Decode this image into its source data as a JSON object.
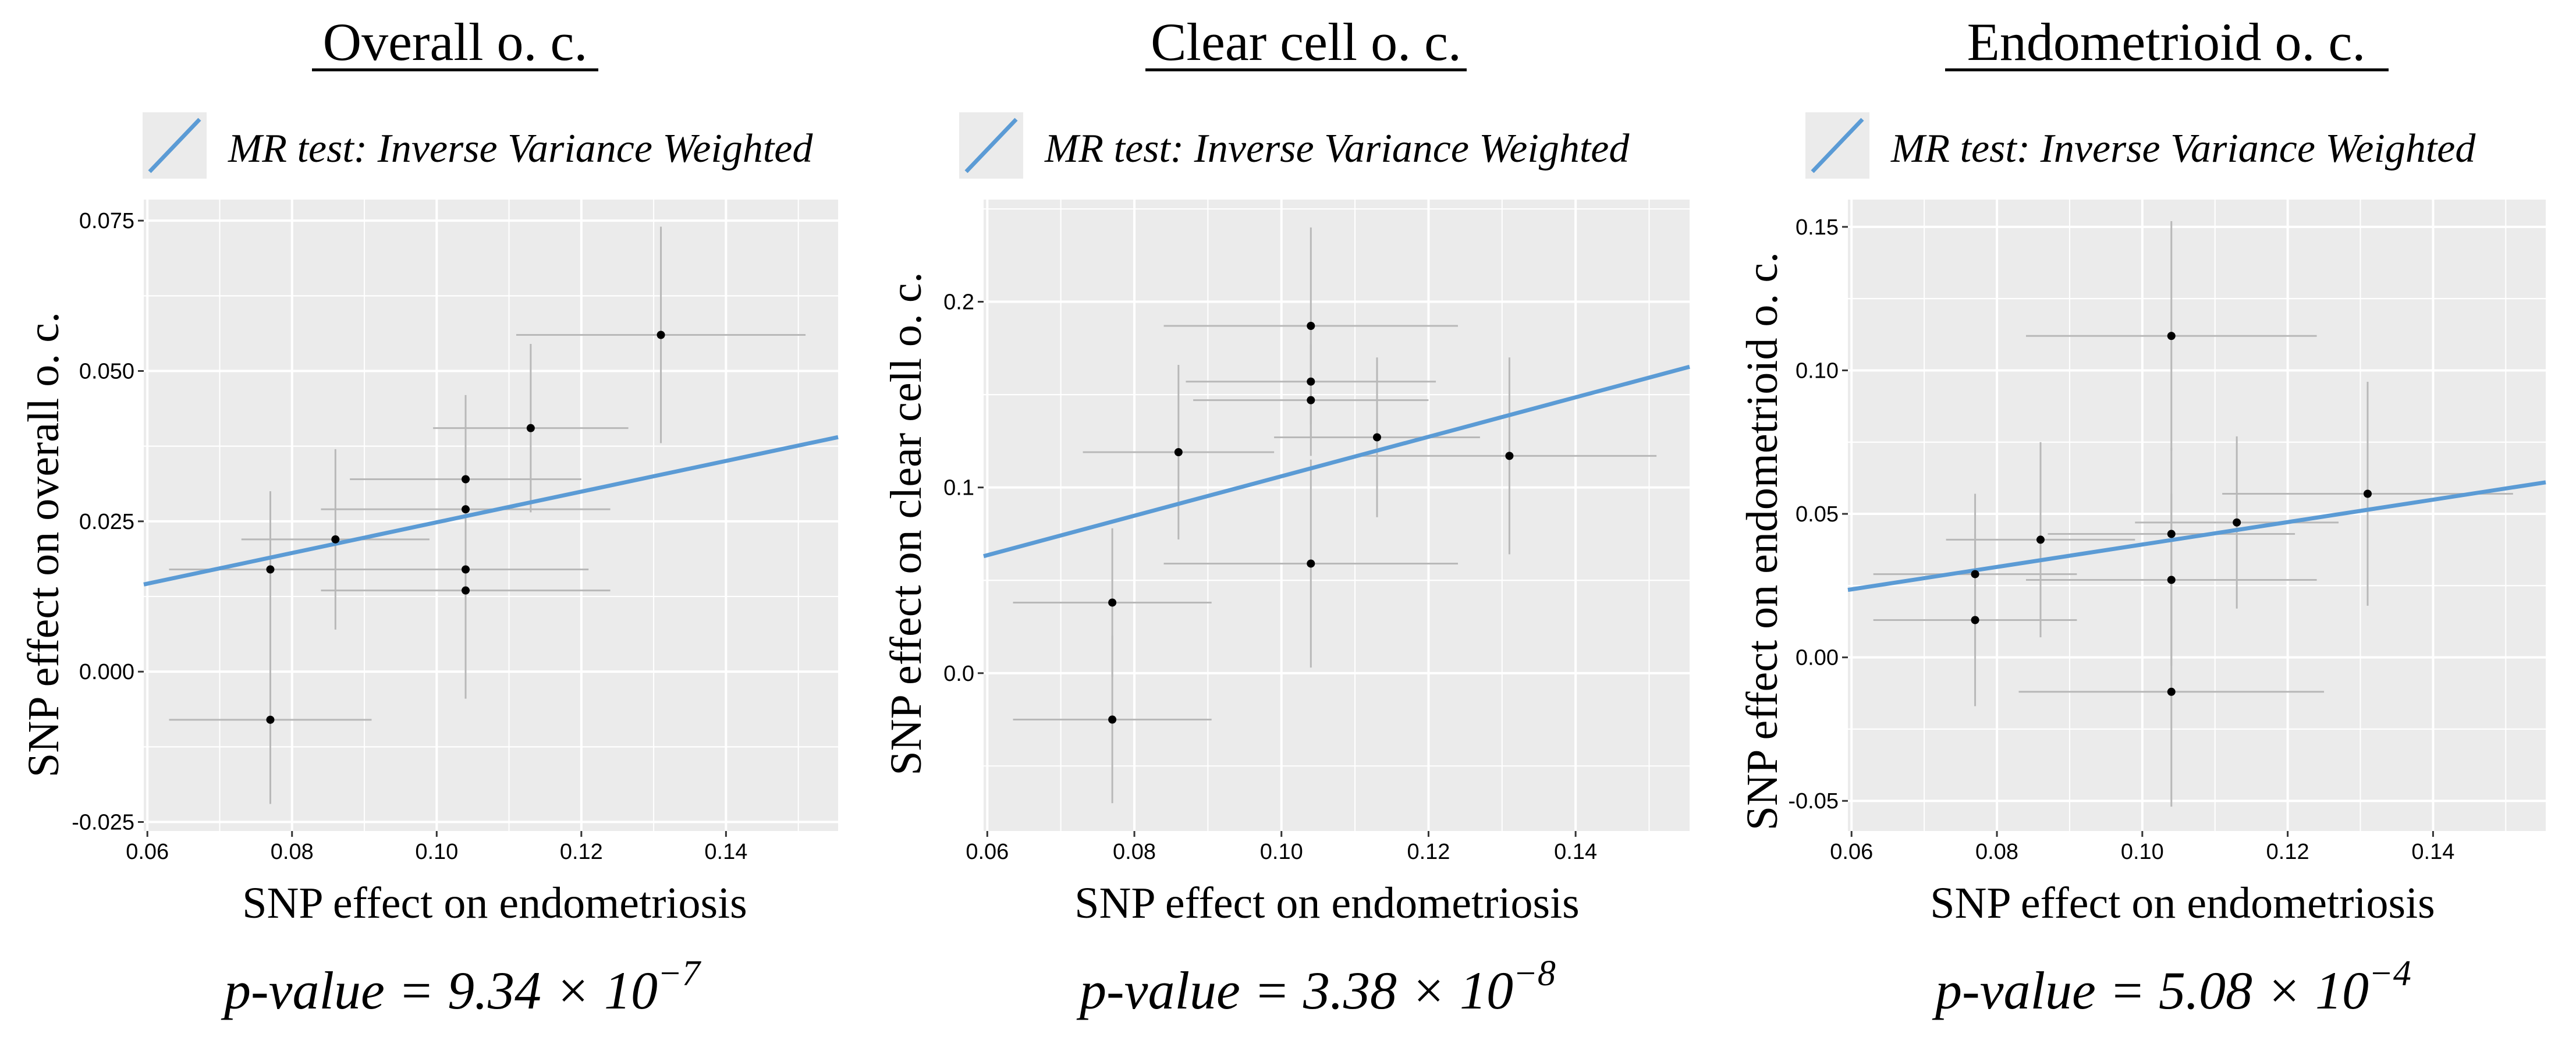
{
  "figure": {
    "panels": [
      {
        "title": "Overall o. c.",
        "legend_label": "MR test: Inverse Variance Weighted",
        "pvalue_prefix": "p-value = 9.34 × 10",
        "pvalue_exponent": "−7"
      },
      {
        "title": "Clear cell o. c.",
        "legend_label": "MR test: Inverse Variance Weighted",
        "pvalue_prefix": "p-value = 3.38 × 10",
        "pvalue_exponent": "−8"
      },
      {
        "title": "Endometrioid o. c.",
        "legend_label": "MR test: Inverse Variance Weighted",
        "pvalue_prefix": "p-value = 5.08 × 10",
        "pvalue_exponent": "−4"
      }
    ]
  },
  "colors": {
    "background": "#ffffff",
    "panel": "#ebebeb",
    "grid": "#ffffff",
    "line": "#5b9bd5",
    "point": "#000000",
    "errorbar": "#b8b8b8"
  },
  "chart_data": [
    {
      "type": "scatter",
      "title": "Overall o. c.",
      "xlabel": "SNP effect on endometriosis",
      "ylabel": "SNP effect on overall o. c.",
      "xlim": [
        0.0595,
        0.1555
      ],
      "ylim": [
        -0.0265,
        0.0785
      ],
      "xticks": [
        0.06,
        0.08,
        0.1,
        0.12,
        0.14
      ],
      "xtick_labels": [
        "0.06",
        "0.08",
        "0.10",
        "0.12",
        "0.14"
      ],
      "yticks": [
        -0.025,
        0.0,
        0.025,
        0.05,
        0.075
      ],
      "ytick_labels": [
        "-0.025",
        "0.000",
        "0.025",
        "0.050",
        "0.075"
      ],
      "fit_line": {
        "x": [
          0.0595,
          0.1555
        ],
        "y": [
          0.0145,
          0.039
        ]
      },
      "points": [
        {
          "x": 0.077,
          "y": 0.017,
          "xerr": 0.014,
          "yerr": 0.013
        },
        {
          "x": 0.077,
          "y": -0.008,
          "xerr": 0.014,
          "yerr": 0.014
        },
        {
          "x": 0.086,
          "y": 0.022,
          "xerr": 0.013,
          "yerr": 0.015
        },
        {
          "x": 0.104,
          "y": 0.032,
          "xerr": 0.016,
          "yerr": 0.014
        },
        {
          "x": 0.104,
          "y": 0.027,
          "xerr": 0.02,
          "yerr": 0.015
        },
        {
          "x": 0.104,
          "y": 0.017,
          "xerr": 0.017,
          "yerr": 0.01
        },
        {
          "x": 0.104,
          "y": 0.0135,
          "xerr": 0.02,
          "yerr": 0.018
        },
        {
          "x": 0.113,
          "y": 0.0405,
          "xerr": 0.0135,
          "yerr": 0.014
        },
        {
          "x": 0.131,
          "y": 0.056,
          "xerr": 0.02,
          "yerr": 0.018
        }
      ]
    },
    {
      "type": "scatter",
      "title": "Clear cell o. c.",
      "xlabel": "SNP effect on endometriosis",
      "ylabel": "SNP effect on clear cell o. c.",
      "xlim": [
        0.0595,
        0.1555
      ],
      "ylim": [
        -0.085,
        0.255
      ],
      "xticks": [
        0.06,
        0.08,
        0.1,
        0.12,
        0.14
      ],
      "xtick_labels": [
        "0.06",
        "0.08",
        "0.10",
        "0.12",
        "0.14"
      ],
      "yticks": [
        0.0,
        0.1,
        0.2
      ],
      "ytick_labels": [
        "0.0",
        "0.1",
        "0.2"
      ],
      "fit_line": {
        "x": [
          0.0595,
          0.1555
        ],
        "y": [
          0.063,
          0.165
        ]
      },
      "points": [
        {
          "x": 0.077,
          "y": 0.038,
          "xerr": 0.0135,
          "yerr": 0.04
        },
        {
          "x": 0.077,
          "y": -0.025,
          "xerr": 0.0135,
          "yerr": 0.045
        },
        {
          "x": 0.086,
          "y": 0.119,
          "xerr": 0.013,
          "yerr": 0.047
        },
        {
          "x": 0.104,
          "y": 0.187,
          "xerr": 0.02,
          "yerr": 0.053
        },
        {
          "x": 0.104,
          "y": 0.157,
          "xerr": 0.017,
          "yerr": 0.03
        },
        {
          "x": 0.104,
          "y": 0.147,
          "xerr": 0.016,
          "yerr": 0.03
        },
        {
          "x": 0.104,
          "y": 0.059,
          "xerr": 0.02,
          "yerr": 0.056
        },
        {
          "x": 0.113,
          "y": 0.127,
          "xerr": 0.014,
          "yerr": 0.043
        },
        {
          "x": 0.131,
          "y": 0.117,
          "xerr": 0.02,
          "yerr": 0.053
        }
      ]
    },
    {
      "type": "scatter",
      "title": "Endometrioid o. c.",
      "xlabel": "SNP effect on endometriosis",
      "ylabel": "SNP effect on endometrioid o. c.",
      "xlim": [
        0.0595,
        0.1555
      ],
      "ylim": [
        -0.0605,
        0.1595
      ],
      "xticks": [
        0.06,
        0.08,
        0.1,
        0.12,
        0.14
      ],
      "xtick_labels": [
        "0.06",
        "0.08",
        "0.10",
        "0.12",
        "0.14"
      ],
      "yticks": [
        -0.05,
        0.0,
        0.05,
        0.1,
        0.15
      ],
      "ytick_labels": [
        "-0.05",
        "0.00",
        "0.05",
        "0.10",
        "0.15"
      ],
      "fit_line": {
        "x": [
          0.0595,
          0.1555
        ],
        "y": [
          0.0235,
          0.061
        ]
      },
      "points": [
        {
          "x": 0.077,
          "y": 0.029,
          "xerr": 0.014,
          "yerr": 0.028
        },
        {
          "x": 0.077,
          "y": 0.013,
          "xerr": 0.014,
          "yerr": 0.03
        },
        {
          "x": 0.086,
          "y": 0.041,
          "xerr": 0.013,
          "yerr": 0.034
        },
        {
          "x": 0.104,
          "y": 0.112,
          "xerr": 0.02,
          "yerr": 0.04
        },
        {
          "x": 0.104,
          "y": 0.043,
          "xerr": 0.017,
          "yerr": 0.03
        },
        {
          "x": 0.104,
          "y": 0.027,
          "xerr": 0.02,
          "yerr": 0.03
        },
        {
          "x": 0.104,
          "y": -0.012,
          "xerr": 0.021,
          "yerr": 0.04
        },
        {
          "x": 0.113,
          "y": 0.047,
          "xerr": 0.014,
          "yerr": 0.03
        },
        {
          "x": 0.131,
          "y": 0.057,
          "xerr": 0.02,
          "yerr": 0.039
        }
      ]
    }
  ]
}
